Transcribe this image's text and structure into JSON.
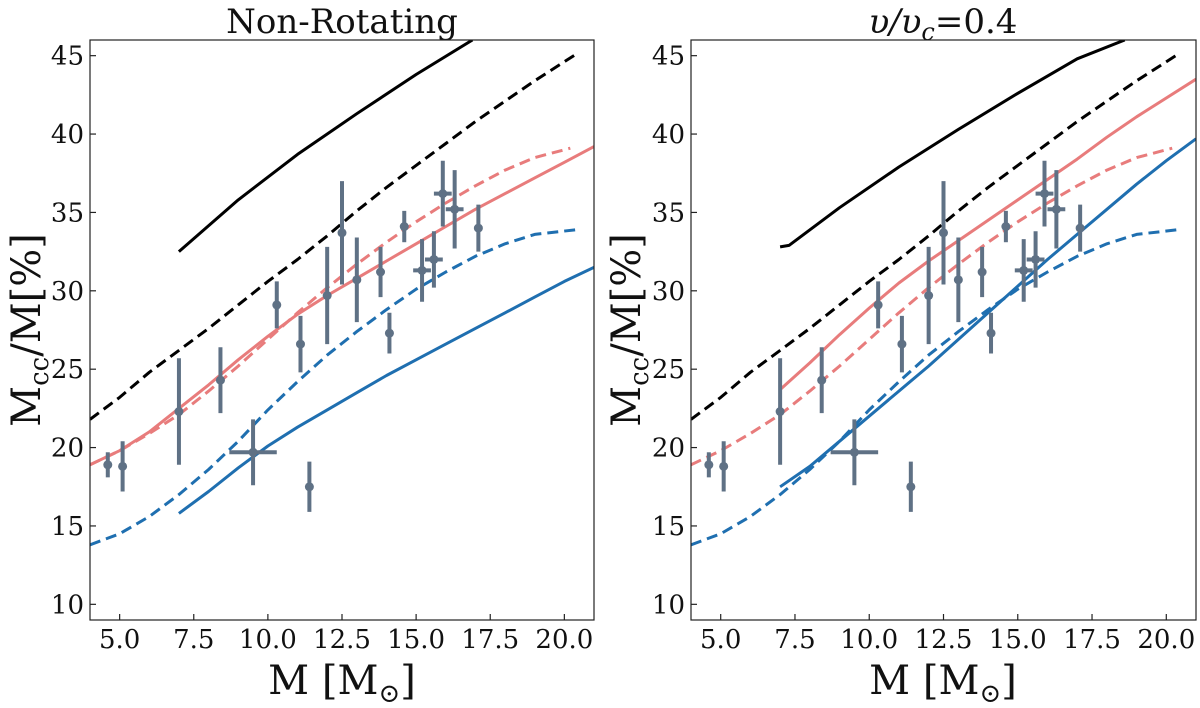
{
  "figure": {
    "panels": [
      {
        "title": "Non-Rotating",
        "xlabel": "M [M⊙]",
        "ylabel": "Mcc/M[%]",
        "colors": {
          "black": "#000000",
          "pink": "#e87c7c",
          "blue": "#1f6fb0",
          "points": "#5f7185"
        }
      },
      {
        "title": "υ/υc=0.4",
        "xlabel": "M [M⊙]",
        "ylabel": "Mcc/M[%]",
        "colors": {
          "black": "#000000",
          "pink": "#e87c7c",
          "blue": "#1f6fb0",
          "points": "#5f7185"
        }
      }
    ]
  },
  "chart_data": [
    {
      "type": "line",
      "title": "Non-Rotating",
      "xlabel": "M [M⊙]",
      "ylabel": "Mcc/M[%]",
      "xlim": [
        4.0,
        21.0
      ],
      "ylim": [
        9.0,
        46.0
      ],
      "xticks": [
        "5.0",
        "7.5",
        "10.0",
        "12.5",
        "15.0",
        "17.5",
        "20.0"
      ],
      "xtick_values": [
        5.0,
        7.5,
        10.0,
        12.5,
        15.0,
        17.5,
        20.0
      ],
      "yticks": [
        "10",
        "15",
        "20",
        "25",
        "30",
        "35",
        "40",
        "45"
      ],
      "ytick_values": [
        10,
        15,
        20,
        25,
        30,
        35,
        40,
        45
      ],
      "series": [
        {
          "color": "#000000",
          "style": "solid",
          "x": [
            7.0,
            9.0,
            11.0,
            13.0,
            15.0,
            16.9
          ],
          "y": [
            32.5,
            35.8,
            38.7,
            41.3,
            43.8,
            46.0
          ]
        },
        {
          "color": "#000000",
          "style": "dashed",
          "x": [
            4.0,
            5.0,
            6.0,
            7.0,
            8.0,
            9.0,
            10.0,
            11.0,
            12.0,
            13.0,
            14.0,
            15.0,
            16.0,
            17.0,
            18.0,
            19.0,
            20.4
          ],
          "y": [
            21.8,
            23.2,
            24.8,
            26.2,
            27.6,
            29.1,
            30.6,
            32.0,
            33.5,
            35.1,
            36.6,
            38.0,
            39.4,
            40.8,
            42.1,
            43.4,
            45.1
          ]
        },
        {
          "color": "#e87c7c",
          "style": "solid",
          "x": [
            4.0,
            5.0,
            6.0,
            7.0,
            8.0,
            9.0,
            10.0,
            11.0,
            12.0,
            13.0,
            14.0,
            15.0,
            16.0,
            17.0,
            18.0,
            19.0,
            20.0,
            21.0
          ],
          "y": [
            18.9,
            19.8,
            21.0,
            22.5,
            24.0,
            25.6,
            27.1,
            28.5,
            29.7,
            30.8,
            31.9,
            33.0,
            34.1,
            35.2,
            36.2,
            37.2,
            38.2,
            39.2
          ]
        },
        {
          "color": "#e87c7c",
          "style": "dashed",
          "x": [
            4.0,
            5.0,
            6.0,
            7.0,
            8.0,
            9.0,
            10.0,
            11.0,
            12.0,
            13.0,
            14.0,
            15.0,
            16.0,
            17.0,
            18.0,
            19.0,
            20.2
          ],
          "y": [
            18.9,
            19.8,
            20.9,
            22.1,
            23.6,
            25.2,
            26.9,
            28.6,
            30.2,
            31.7,
            33.1,
            34.4,
            35.6,
            36.7,
            37.7,
            38.5,
            39.1
          ]
        },
        {
          "color": "#1f6fb0",
          "style": "solid",
          "x": [
            7.0,
            8.0,
            9.0,
            10.0,
            11.0,
            12.0,
            13.0,
            14.0,
            15.0,
            16.0,
            17.0,
            18.0,
            19.0,
            20.0,
            21.0
          ],
          "y": [
            15.8,
            17.2,
            18.7,
            20.1,
            21.3,
            22.4,
            23.5,
            24.6,
            25.6,
            26.6,
            27.6,
            28.6,
            29.6,
            30.6,
            31.5
          ]
        },
        {
          "color": "#1f6fb0",
          "style": "dashed",
          "x": [
            4.0,
            5.0,
            6.0,
            7.0,
            8.0,
            9.0,
            10.0,
            11.0,
            12.0,
            13.0,
            14.0,
            15.0,
            16.0,
            17.0,
            18.0,
            19.0,
            20.4
          ],
          "y": [
            13.8,
            14.5,
            15.6,
            17.0,
            18.6,
            20.4,
            22.4,
            24.2,
            25.9,
            27.4,
            28.8,
            30.1,
            31.2,
            32.2,
            33.0,
            33.6,
            33.9
          ]
        }
      ],
      "points": {
        "color": "#5f7185",
        "x": [
          4.6,
          5.1,
          7.0,
          8.4,
          9.5,
          10.3,
          11.1,
          11.4,
          12.0,
          12.5,
          13.0,
          13.8,
          14.1,
          14.6,
          15.2,
          15.6,
          15.9,
          16.3,
          17.1
        ],
        "y": [
          18.9,
          18.8,
          22.3,
          24.3,
          19.7,
          29.1,
          26.6,
          17.5,
          29.7,
          33.7,
          30.7,
          31.2,
          27.3,
          34.1,
          31.3,
          32.0,
          36.2,
          35.2,
          34.0
        ],
        "yerr": [
          0.8,
          1.6,
          3.4,
          2.1,
          2.1,
          1.5,
          1.8,
          1.6,
          3.1,
          3.3,
          2.7,
          1.6,
          1.3,
          1.0,
          2.0,
          1.8,
          2.1,
          2.5,
          1.5
        ],
        "xerr": [
          0,
          0,
          0,
          0,
          0.8,
          0,
          0,
          0,
          0,
          0,
          0,
          0,
          0,
          0,
          0.3,
          0.3,
          0.3,
          0.3,
          0
        ]
      }
    },
    {
      "type": "line",
      "title": "υ/υc=0.4",
      "xlabel": "M [M⊙]",
      "ylabel": "Mcc/M[%]",
      "xlim": [
        4.0,
        21.0
      ],
      "ylim": [
        9.0,
        46.0
      ],
      "xticks": [
        "5.0",
        "7.5",
        "10.0",
        "12.5",
        "15.0",
        "17.5",
        "20.0"
      ],
      "xtick_values": [
        5.0,
        7.5,
        10.0,
        12.5,
        15.0,
        17.5,
        20.0
      ],
      "yticks": [
        "10",
        "15",
        "20",
        "25",
        "30",
        "35",
        "40",
        "45"
      ],
      "ytick_values": [
        10,
        15,
        20,
        25,
        30,
        35,
        40,
        45
      ],
      "series": [
        {
          "color": "#000000",
          "style": "solid",
          "x": [
            7.0,
            7.3,
            9.0,
            11.0,
            13.0,
            15.0,
            17.0,
            18.6
          ],
          "y": [
            32.8,
            32.9,
            35.3,
            37.9,
            40.3,
            42.6,
            44.8,
            46.0
          ]
        },
        {
          "color": "#000000",
          "style": "dashed",
          "x": [
            4.0,
            5.0,
            6.0,
            7.0,
            8.0,
            9.0,
            10.0,
            11.0,
            12.0,
            13.0,
            14.0,
            15.0,
            16.0,
            17.0,
            18.0,
            19.0,
            20.4
          ],
          "y": [
            21.8,
            23.2,
            24.8,
            26.2,
            27.6,
            29.1,
            30.6,
            32.0,
            33.5,
            35.1,
            36.6,
            38.0,
            39.4,
            40.8,
            42.1,
            43.4,
            45.1
          ]
        },
        {
          "color": "#e87c7c",
          "style": "solid",
          "x": [
            7.0,
            8.0,
            9.0,
            10.0,
            11.0,
            12.0,
            13.0,
            14.0,
            15.0,
            16.0,
            17.0,
            18.0,
            19.0,
            20.0,
            21.0
          ],
          "y": [
            23.7,
            25.4,
            27.2,
            28.9,
            30.5,
            31.9,
            33.2,
            34.5,
            35.8,
            37.1,
            38.4,
            39.8,
            41.1,
            42.3,
            43.5
          ]
        },
        {
          "color": "#e87c7c",
          "style": "dashed",
          "x": [
            4.0,
            5.0,
            6.0,
            7.0,
            8.0,
            9.0,
            10.0,
            11.0,
            12.0,
            13.0,
            14.0,
            15.0,
            16.0,
            17.0,
            18.0,
            19.0,
            20.2
          ],
          "y": [
            18.9,
            19.8,
            20.9,
            22.1,
            23.6,
            25.2,
            26.9,
            28.6,
            30.2,
            31.7,
            33.1,
            34.4,
            35.6,
            36.7,
            37.7,
            38.5,
            39.1
          ]
        },
        {
          "color": "#1f6fb0",
          "style": "solid",
          "x": [
            7.0,
            8.0,
            9.0,
            10.0,
            11.0,
            12.0,
            13.0,
            14.0,
            15.0,
            16.0,
            17.0,
            18.0,
            19.0,
            20.0,
            21.0
          ],
          "y": [
            17.5,
            18.8,
            20.4,
            22.0,
            23.6,
            25.2,
            26.9,
            28.6,
            30.3,
            32.0,
            33.6,
            35.2,
            36.8,
            38.3,
            39.7
          ]
        },
        {
          "color": "#1f6fb0",
          "style": "dashed",
          "x": [
            4.0,
            5.0,
            6.0,
            7.0,
            8.0,
            9.0,
            10.0,
            11.0,
            12.0,
            13.0,
            14.0,
            15.0,
            16.0,
            17.0,
            18.0,
            19.0,
            20.4
          ],
          "y": [
            13.8,
            14.5,
            15.6,
            17.0,
            18.6,
            20.4,
            22.4,
            24.2,
            25.9,
            27.4,
            28.8,
            30.1,
            31.2,
            32.2,
            33.0,
            33.6,
            33.9
          ]
        }
      ],
      "points": {
        "color": "#5f7185",
        "x": [
          4.6,
          5.1,
          7.0,
          8.4,
          9.5,
          10.3,
          11.1,
          11.4,
          12.0,
          12.5,
          13.0,
          13.8,
          14.1,
          14.6,
          15.2,
          15.6,
          15.9,
          16.3,
          17.1
        ],
        "y": [
          18.9,
          18.8,
          22.3,
          24.3,
          19.7,
          29.1,
          26.6,
          17.5,
          29.7,
          33.7,
          30.7,
          31.2,
          27.3,
          34.1,
          31.3,
          32.0,
          36.2,
          35.2,
          34.0
        ],
        "yerr": [
          0.8,
          1.6,
          3.4,
          2.1,
          2.1,
          1.5,
          1.8,
          1.6,
          3.1,
          3.3,
          2.7,
          1.6,
          1.3,
          1.0,
          2.0,
          1.8,
          2.1,
          2.5,
          1.5
        ],
        "xerr": [
          0,
          0,
          0,
          0,
          0.8,
          0,
          0,
          0,
          0,
          0,
          0,
          0,
          0,
          0,
          0.3,
          0.3,
          0.3,
          0.3,
          0
        ]
      }
    }
  ]
}
